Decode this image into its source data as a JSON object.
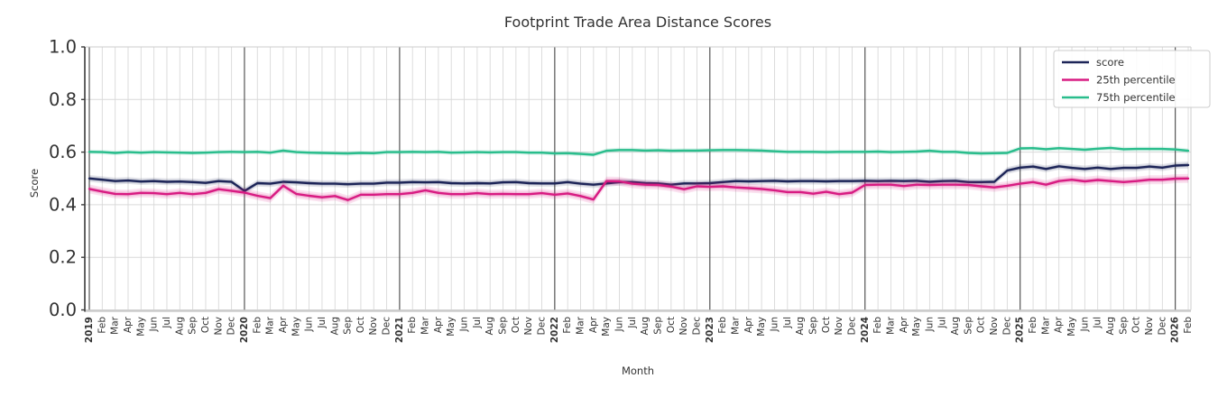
{
  "chart_data": {
    "type": "line",
    "title": "Footprint Trade Area Distance Scores",
    "xlabel": "Month",
    "ylabel": "Score",
    "ylim": [
      0.0,
      1.0
    ],
    "yticks": [
      "0.0",
      "0.2",
      "0.4",
      "0.6",
      "0.8",
      "1.0"
    ],
    "grid": true,
    "legend_position": "upper right",
    "x_tick_labels": [
      "2019",
      "Feb",
      "Mar",
      "Apr",
      "May",
      "Jun",
      "Jul",
      "Aug",
      "Sep",
      "Oct",
      "Nov",
      "Dec",
      "2020",
      "Feb",
      "Mar",
      "Apr",
      "May",
      "Jun",
      "Jul",
      "Aug",
      "Sep",
      "Oct",
      "Nov",
      "Dec",
      "2021",
      "Feb",
      "Mar",
      "Apr",
      "May",
      "Jun",
      "Jul",
      "Aug",
      "Sep",
      "Oct",
      "Nov",
      "Dec",
      "2022",
      "Feb",
      "Mar",
      "Apr",
      "May",
      "Jun",
      "Jul",
      "Aug",
      "Sep",
      "Oct",
      "Nov",
      "Dec",
      "2023",
      "Feb",
      "Mar",
      "Apr",
      "May",
      "Jun",
      "Jul",
      "Aug",
      "Sep",
      "Oct",
      "Nov",
      "Dec",
      "2024",
      "Feb",
      "Mar",
      "Apr",
      "May",
      "Jun",
      "Jul",
      "Aug",
      "Sep",
      "Oct",
      "Nov",
      "Dec",
      "2025",
      "Feb",
      "Mar",
      "Apr",
      "May",
      "Jun",
      "Jul",
      "Aug",
      "Sep",
      "Oct",
      "Nov",
      "Dec",
      "2026",
      "Feb"
    ],
    "series": [
      {
        "name": "score",
        "color": "#1d2558",
        "band": 0.013,
        "values": [
          0.5,
          0.495,
          0.49,
          0.492,
          0.488,
          0.49,
          0.487,
          0.488,
          0.486,
          0.483,
          0.49,
          0.487,
          0.452,
          0.482,
          0.48,
          0.487,
          0.485,
          0.482,
          0.48,
          0.48,
          0.478,
          0.48,
          0.48,
          0.484,
          0.484,
          0.486,
          0.485,
          0.486,
          0.482,
          0.481,
          0.482,
          0.481,
          0.485,
          0.486,
          0.482,
          0.481,
          0.481,
          0.486,
          0.48,
          0.476,
          0.481,
          0.486,
          0.486,
          0.482,
          0.481,
          0.476,
          0.481,
          0.481,
          0.482,
          0.486,
          0.49,
          0.489,
          0.49,
          0.491,
          0.489,
          0.49,
          0.49,
          0.489,
          0.49,
          0.49,
          0.491,
          0.49,
          0.491,
          0.49,
          0.491,
          0.487,
          0.49,
          0.491,
          0.486,
          0.486,
          0.487,
          0.53,
          0.541,
          0.545,
          0.536,
          0.546,
          0.54,
          0.536,
          0.541,
          0.536,
          0.54,
          0.54,
          0.545,
          0.541,
          0.549,
          0.551
        ]
      },
      {
        "name": "25th percentile",
        "color": "#d81b82",
        "band": 0.017,
        "values": [
          0.46,
          0.45,
          0.441,
          0.44,
          0.445,
          0.444,
          0.44,
          0.445,
          0.44,
          0.445,
          0.459,
          0.453,
          0.446,
          0.434,
          0.425,
          0.472,
          0.441,
          0.434,
          0.428,
          0.433,
          0.418,
          0.438,
          0.438,
          0.44,
          0.44,
          0.445,
          0.455,
          0.445,
          0.44,
          0.44,
          0.444,
          0.44,
          0.441,
          0.44,
          0.44,
          0.444,
          0.438,
          0.443,
          0.433,
          0.42,
          0.49,
          0.489,
          0.48,
          0.476,
          0.475,
          0.469,
          0.459,
          0.47,
          0.468,
          0.47,
          0.466,
          0.463,
          0.46,
          0.455,
          0.448,
          0.448,
          0.442,
          0.449,
          0.44,
          0.446,
          0.475,
          0.476,
          0.476,
          0.471,
          0.476,
          0.475,
          0.476,
          0.476,
          0.475,
          0.47,
          0.466,
          0.472,
          0.48,
          0.486,
          0.476,
          0.49,
          0.495,
          0.489,
          0.494,
          0.49,
          0.486,
          0.49,
          0.495,
          0.495,
          0.499,
          0.5
        ]
      },
      {
        "name": "75th percentile",
        "color": "#29bd8c",
        "band": 0.009,
        "values": [
          0.601,
          0.6,
          0.597,
          0.6,
          0.598,
          0.6,
          0.599,
          0.598,
          0.597,
          0.598,
          0.6,
          0.601,
          0.6,
          0.601,
          0.598,
          0.606,
          0.6,
          0.598,
          0.597,
          0.596,
          0.595,
          0.597,
          0.596,
          0.6,
          0.6,
          0.601,
          0.6,
          0.601,
          0.598,
          0.599,
          0.6,
          0.599,
          0.6,
          0.6,
          0.598,
          0.598,
          0.595,
          0.596,
          0.593,
          0.59,
          0.605,
          0.608,
          0.608,
          0.606,
          0.607,
          0.605,
          0.606,
          0.606,
          0.607,
          0.608,
          0.608,
          0.607,
          0.606,
          0.603,
          0.601,
          0.601,
          0.601,
          0.6,
          0.601,
          0.601,
          0.601,
          0.602,
          0.6,
          0.601,
          0.602,
          0.605,
          0.601,
          0.601,
          0.597,
          0.595,
          0.596,
          0.597,
          0.614,
          0.615,
          0.611,
          0.615,
          0.612,
          0.609,
          0.613,
          0.616,
          0.611,
          0.612,
          0.612,
          0.612,
          0.61,
          0.605
        ]
      }
    ],
    "colors": {
      "grid": "#d9d9d9",
      "year_line": "#454545",
      "spine_dark": "#3a3a3a",
      "spine_light": "#cccccc",
      "text": "#333333",
      "legend_border": "#cccccc",
      "background": "#ffffff"
    }
  }
}
